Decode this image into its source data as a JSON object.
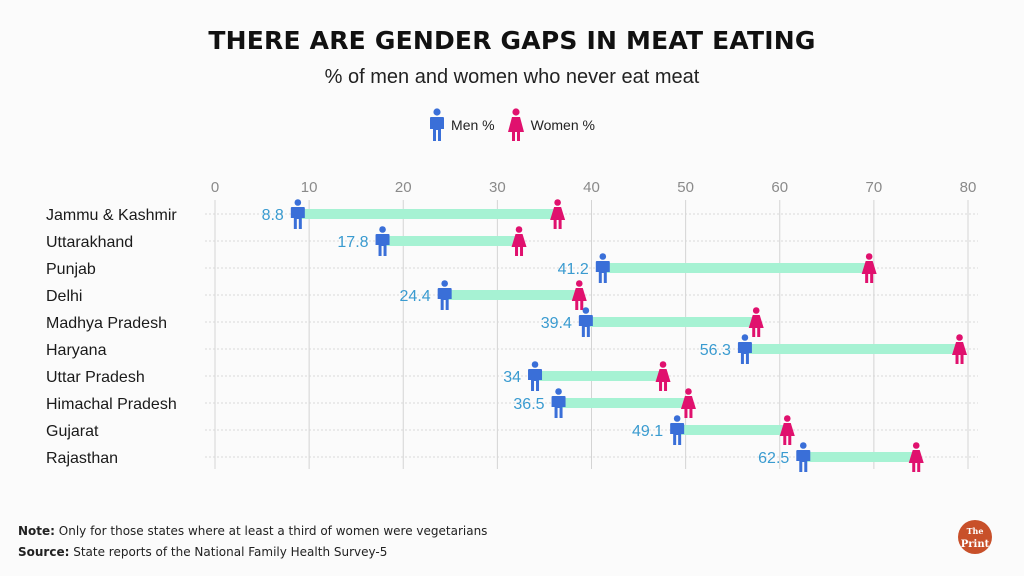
{
  "header": {
    "title": "THERE ARE GENDER GAPS IN MEAT EATING",
    "subtitle": "% of men and women who never eat meat"
  },
  "legend": {
    "men_label": "Men %",
    "women_label": "Women %"
  },
  "colors": {
    "men": "#3a6fd8",
    "women": "#e0116e",
    "gap_bar": "#a6f2d3",
    "men_label_text": "#3a9bd0"
  },
  "chart_data": {
    "type": "dumbbell",
    "title": "THERE ARE GENDER GAPS IN MEAT EATING",
    "subtitle": "% of men and women who never eat meat",
    "categories": [
      "Jammu & Kashmir",
      "Uttarakhand",
      "Punjab",
      "Delhi",
      "Madhya Pradesh",
      "Haryana",
      "Uttar Pradesh",
      "Himachal Pradesh",
      "Gujarat",
      "Rajasthan"
    ],
    "series": [
      {
        "name": "Men %",
        "values": [
          8.8,
          17.8,
          41.2,
          24.4,
          39.4,
          56.3,
          34,
          36.5,
          49.1,
          62.5
        ],
        "labels": [
          "8.8",
          "17.8",
          "41.2",
          "24.4",
          "39.4",
          "56.3",
          "34",
          "36.5",
          "49.1",
          "62.5"
        ]
      },
      {
        "name": "Women %",
        "values": [
          36.4,
          32.3,
          69.5,
          38.7,
          57.5,
          79.1,
          47.6,
          50.3,
          60.8,
          74.5
        ]
      }
    ],
    "x_ticks": [
      0,
      10,
      20,
      30,
      40,
      50,
      60,
      70,
      80
    ],
    "xlim": [
      0,
      80
    ],
    "xlabel": "",
    "ylabel": "",
    "grid": true,
    "legend_position": "top-center"
  },
  "footer": {
    "note_label": "Note:",
    "note_text": " Only for those states where at least a third of women were vegetarians",
    "source_label": "Source:",
    "source_text": " State reports of the National Family Health Survey-5"
  },
  "logo": {
    "line1": "The",
    "line2": "Print"
  }
}
